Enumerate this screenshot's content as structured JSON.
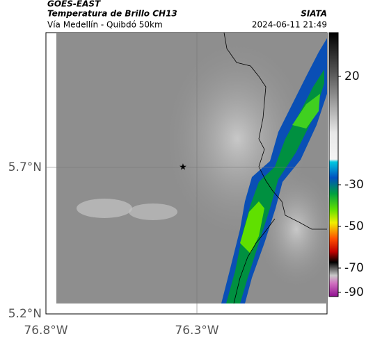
{
  "header": {
    "title": "GOES-EAST",
    "subtitle": "Temperatura de Brillo CH13",
    "source": "SIATA",
    "route": "Vía Medellín - Quibdó 50km",
    "datetime": "2024-06-11 21:49"
  },
  "map": {
    "lat_labels": [
      "5.7°N",
      "5.2°N"
    ],
    "lon_labels": [
      "76.8°W",
      "76.3°W"
    ]
  },
  "colorbar": {
    "ticks": [
      "20",
      "-30",
      "-50",
      "-70",
      "-90"
    ]
  }
}
